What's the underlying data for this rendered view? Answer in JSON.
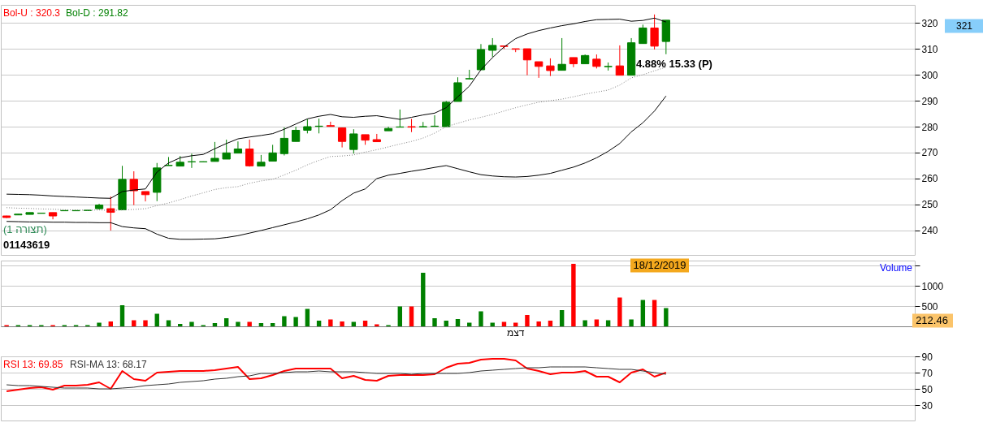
{
  "chart_data": [
    {
      "type": "candlestick",
      "categories": [
        null,
        null,
        null,
        null,
        null,
        null,
        null,
        null,
        null,
        null,
        null,
        null,
        null,
        null,
        null,
        null,
        null,
        null,
        null,
        null,
        null,
        null,
        null,
        null,
        null,
        null,
        null,
        null,
        null,
        null,
        null,
        null,
        null,
        null,
        null,
        null,
        null,
        null,
        null,
        null,
        null,
        null,
        null,
        null,
        null,
        null,
        null,
        null,
        null,
        null,
        null,
        null,
        null,
        null,
        null,
        null,
        null,
        null,
        null,
        null,
        null,
        null,
        null,
        null,
        null,
        null,
        null,
        null,
        null,
        null,
        null,
        null,
        null,
        null,
        null,
        null,
        null,
        null,
        null
      ],
      "ohlc": [
        [
          245.6,
          245.7,
          244.8,
          245.0
        ],
        [
          246.0,
          246.3,
          246.0,
          246.3
        ],
        [
          246.2,
          246.9,
          246.2,
          246.9
        ],
        [
          246.6,
          246.7,
          246.6,
          246.7
        ],
        [
          246.9,
          246.9,
          244.3,
          245.6
        ],
        [
          247.6,
          247.7,
          247.6,
          247.7
        ],
        [
          247.6,
          247.7,
          247.6,
          247.7
        ],
        [
          247.7,
          247.8,
          247.7,
          247.8
        ],
        [
          248.4,
          250.3,
          248.1,
          249.8
        ],
        [
          248.4,
          253.1,
          240.0,
          247.0
        ],
        [
          248.0,
          264.9,
          247.9,
          259.7
        ],
        [
          259.7,
          262.8,
          249.8,
          255.3
        ],
        [
          255.0,
          255.0,
          251.2,
          253.8
        ],
        [
          254.7,
          266.0,
          251.3,
          264.1
        ],
        [
          265.0,
          268.3,
          265.0,
          265.1
        ],
        [
          264.8,
          268.7,
          264.8,
          266.3
        ],
        [
          266.4,
          269.6,
          264.1,
          266.5
        ],
        [
          266.4,
          266.6,
          266.4,
          266.5
        ],
        [
          266.6,
          274.1,
          266.6,
          267.8
        ],
        [
          267.5,
          275.0,
          267.5,
          269.9
        ],
        [
          269.8,
          274.3,
          269.8,
          271.4
        ],
        [
          271.4,
          275.0,
          264.6,
          264.9
        ],
        [
          264.8,
          269.1,
          264.8,
          266.3
        ],
        [
          266.7,
          273.0,
          266.7,
          269.9
        ],
        [
          269.6,
          279.7,
          268.9,
          275.5
        ],
        [
          274.3,
          280.0,
          274.3,
          278.6
        ],
        [
          278.6,
          282.9,
          277.4,
          280.0
        ],
        [
          280.1,
          283.1,
          277.4,
          280.2
        ],
        [
          280.4,
          281.9,
          280.1,
          280.1
        ],
        [
          279.5,
          279.6,
          272.0,
          274.3
        ],
        [
          271.2,
          279.0,
          269.6,
          277.2
        ],
        [
          276.9,
          276.9,
          273.0,
          274.8
        ],
        [
          275.0,
          277.2,
          274.2,
          274.2
        ],
        [
          278.4,
          280.0,
          278.4,
          279.3
        ],
        [
          279.8,
          286.6,
          279.8,
          279.9
        ],
        [
          280.0,
          283.0,
          277.9,
          279.8
        ],
        [
          279.9,
          281.8,
          279.8,
          280.0
        ],
        [
          280.1,
          284.4,
          280.0,
          280.2
        ],
        [
          280.0,
          289.9,
          280.0,
          289.4
        ],
        [
          289.7,
          299.0,
          289.7,
          296.9
        ],
        [
          298.4,
          301.9,
          298.2,
          298.5
        ],
        [
          301.9,
          311.8,
          301.9,
          309.7
        ],
        [
          309.4,
          314.1,
          306.9,
          311.3
        ],
        [
          311.1,
          311.2,
          309.9,
          310.9
        ],
        [
          310.0,
          310.0,
          308.7,
          309.8
        ],
        [
          310.0,
          310.0,
          299.8,
          305.7
        ],
        [
          305.0,
          305.0,
          298.8,
          303.2
        ],
        [
          303.4,
          306.3,
          299.5,
          301.6
        ],
        [
          301.7,
          314.1,
          301.7,
          304.0
        ],
        [
          306.6,
          306.6,
          302.9,
          304.2
        ],
        [
          304.2,
          307.8,
          304.2,
          307.4
        ],
        [
          306.0,
          307.8,
          302.4,
          303.2
        ],
        [
          303.1,
          304.7,
          301.6,
          303.2
        ],
        [
          303.4,
          311.3,
          299.8,
          299.8
        ],
        [
          299.8,
          314.1,
          299.8,
          312.3
        ],
        [
          312.0,
          319.3,
          312.0,
          318.0
        ],
        [
          318.0,
          323.2,
          309.7,
          311.0
        ],
        [
          312.8,
          321.0,
          307.9,
          321.0
        ],
        null,
        null,
        null,
        null,
        null,
        null,
        null,
        null,
        null,
        null,
        null,
        null,
        null,
        null,
        null,
        null,
        null,
        null,
        null,
        null,
        null
      ],
      "colors": [
        "#ff0000",
        "#008000",
        "#008000",
        "#008000",
        "#ff0000",
        "#008000",
        "#008000",
        "#008000",
        "#008000",
        "#ff0000",
        "#008000",
        "#ff0000",
        "#ff0000",
        "#008000",
        "#008000",
        "#008000",
        "#008000",
        "#008000",
        "#008000",
        "#008000",
        "#008000",
        "#ff0000",
        "#008000",
        "#008000",
        "#008000",
        "#008000",
        "#008000",
        "#008000",
        "#ff0000",
        "#ff0000",
        "#008000",
        "#ff0000",
        "#ff0000",
        "#008000",
        "#008000",
        "#ff0000",
        "#008000",
        "#008000",
        "#008000",
        "#008000",
        "#008000",
        "#008000",
        "#008000",
        "#ff0000",
        "#ff0000",
        "#ff0000",
        "#ff0000",
        "#ff0000",
        "#008000",
        "#ff0000",
        "#008000",
        "#ff0000",
        "#008000",
        "#ff0000",
        "#008000",
        "#008000",
        "#ff0000",
        "#008000",
        null,
        null,
        null,
        null,
        null,
        null,
        null,
        null,
        null,
        null,
        null,
        null,
        null,
        null,
        null,
        null,
        null,
        null,
        null,
        null,
        null
      ],
      "series": [
        {
          "type": "line",
          "color": "#000000",
          "line_style": "solid",
          "values": [
            254.0,
            253.9,
            253.8,
            253.6,
            253.3,
            253.1,
            252.9,
            252.7,
            252.5,
            252.4,
            255.0,
            255.6,
            256.0,
            262.5,
            266.0,
            268.0,
            268.8,
            269.3,
            271.5,
            273.5,
            275.3,
            276.0,
            276.6,
            277.3,
            279.0,
            281.0,
            283.0,
            284.0,
            284.7,
            283.8,
            283.6,
            284.0,
            284.2,
            283.5,
            282.8,
            283.6,
            284.5,
            285.2,
            287.3,
            291.5,
            295.6,
            301.9,
            306.6,
            310.7,
            313.9,
            315.7,
            317.0,
            318.0,
            318.9,
            319.6,
            320.5,
            321.2,
            321.3,
            321.4,
            320.6,
            320.9,
            321.8,
            320.3,
            null,
            null,
            null,
            null,
            null,
            null,
            null,
            null,
            null,
            null,
            null,
            null,
            null,
            null,
            null,
            null,
            null,
            null,
            null,
            null,
            null
          ]
        },
        {
          "type": "line",
          "color": "#808080",
          "line_style": "dotted",
          "values": [
            248.8,
            248.6,
            248.5,
            248.3,
            248.2,
            248.0,
            247.9,
            247.8,
            247.9,
            247.7,
            247.9,
            248.1,
            248.4,
            249.6,
            250.6,
            251.9,
            253.3,
            254.5,
            255.8,
            256.5,
            256.9,
            258.2,
            259.1,
            259.7,
            261.4,
            263.2,
            265.3,
            267.0,
            268.5,
            268.7,
            269.1,
            270.2,
            271.1,
            272.2,
            273.3,
            274.3,
            275.6,
            277.5,
            280.0,
            281.3,
            282.6,
            283.6,
            284.7,
            286.0,
            287.3,
            288.4,
            289.4,
            290.0,
            290.6,
            291.5,
            292.5,
            293.3,
            294.1,
            296.0,
            298.8,
            300.0,
            301.5,
            302.9,
            null,
            null,
            null,
            null,
            null,
            null,
            null,
            null,
            null,
            null,
            null,
            null,
            null,
            null,
            null,
            null,
            null,
            null,
            null,
            null,
            null
          ]
        },
        {
          "type": "line",
          "color": "#000000",
          "line_style": "solid",
          "values": [
            243.5,
            243.4,
            243.3,
            243.3,
            243.2,
            243.2,
            243.1,
            243.1,
            243.0,
            243.0,
            241.5,
            241.0,
            240.7,
            238.6,
            237.0,
            236.6,
            236.6,
            236.7,
            236.8,
            237.3,
            238.0,
            239.0,
            240.0,
            241.1,
            242.2,
            243.3,
            244.5,
            246.0,
            248.0,
            251.5,
            254.4,
            256.0,
            260.0,
            261.3,
            262.0,
            262.8,
            263.5,
            264.3,
            265.0,
            263.8,
            262.6,
            261.5,
            261.0,
            260.7,
            260.6,
            260.8,
            261.3,
            262.0,
            263.2,
            264.4,
            266.0,
            268.0,
            270.5,
            273.5,
            278.0,
            281.5,
            286.0,
            291.8,
            null,
            null,
            null,
            null,
            null,
            null,
            null,
            null,
            null,
            null,
            null,
            null,
            null,
            null,
            null,
            null,
            null,
            null,
            null,
            null,
            null
          ]
        }
      ],
      "ylim": [
        230.6,
        326.9
      ],
      "yticks": [
        240,
        250,
        260,
        270,
        280,
        290,
        300,
        310,
        320
      ],
      "grid": "y",
      "tick_labels": "y",
      "annotations": [
        "Bol-U : 320.3",
        "Bol-D : 291.82",
        "4.88% 15.33 (P)",
        "(תצורה 1)",
        "01143619",
        "321"
      ]
    },
    {
      "type": "bar",
      "categories": [
        null,
        null,
        null,
        null,
        null,
        null,
        null,
        null,
        null,
        null,
        null,
        null,
        null,
        null,
        null,
        null,
        null,
        null,
        null,
        null,
        null,
        null,
        null,
        null,
        null,
        null,
        null,
        null,
        null,
        null,
        null,
        null,
        null,
        null,
        null,
        null,
        null,
        null,
        null,
        null,
        null,
        null,
        null,
        null,
        "דצמ",
        null,
        null,
        null,
        null,
        null,
        null,
        null,
        null,
        null,
        null,
        null,
        null,
        null,
        null,
        null,
        null,
        null,
        null,
        null,
        null,
        null,
        null,
        null,
        null,
        null,
        null,
        null,
        null,
        null,
        null,
        null,
        null,
        null,
        null
      ],
      "values": [
        30,
        30,
        30,
        30,
        30,
        30,
        30,
        30,
        90,
        120,
        520,
        150,
        150,
        310,
        150,
        60,
        110,
        30,
        80,
        200,
        110,
        110,
        80,
        80,
        250,
        230,
        430,
        140,
        170,
        120,
        110,
        140,
        50,
        30,
        490,
        490,
        1320,
        200,
        140,
        180,
        90,
        370,
        90,
        110,
        90,
        280,
        120,
        140,
        400,
        1540,
        150,
        170,
        150,
        710,
        170,
        650,
        650,
        450,
        null,
        null,
        null,
        null,
        null,
        null,
        null,
        null,
        null,
        null,
        null,
        null,
        null,
        null,
        null,
        null,
        null,
        null,
        null,
        null,
        null
      ],
      "colors": [
        "#ff0000",
        "#008000",
        "#008000",
        "#008000",
        "#ff0000",
        "#008000",
        "#008000",
        "#008000",
        "#008000",
        "#ff0000",
        "#008000",
        "#ff0000",
        "#ff0000",
        "#008000",
        "#008000",
        "#008000",
        "#008000",
        "#008000",
        "#008000",
        "#008000",
        "#008000",
        "#ff0000",
        "#008000",
        "#008000",
        "#008000",
        "#008000",
        "#008000",
        "#008000",
        "#ff0000",
        "#ff0000",
        "#008000",
        "#ff0000",
        "#ff0000",
        "#008000",
        "#008000",
        "#ff0000",
        "#008000",
        "#008000",
        "#008000",
        "#008000",
        "#008000",
        "#008000",
        "#008000",
        "#ff0000",
        "#ff0000",
        "#ff0000",
        "#ff0000",
        "#ff0000",
        "#008000",
        "#ff0000",
        "#008000",
        "#ff0000",
        "#008000",
        "#ff0000",
        "#008000",
        "#008000",
        "#ff0000",
        "#008000",
        null,
        null,
        null,
        null,
        null,
        null,
        null,
        null,
        null,
        null,
        null,
        null,
        null,
        null,
        null,
        null,
        null,
        null,
        null,
        null,
        null
      ],
      "ylim": [
        0,
        1620
      ],
      "yticks": [
        500,
        1000,
        {
          "value": 1500,
          "label": null
        }
      ],
      "grid": "y",
      "annotations": [
        "Volume",
        "18/12/2019",
        "212.46"
      ]
    },
    {
      "type": "line",
      "categories": [
        null,
        null,
        null,
        null,
        null,
        null,
        null,
        null,
        null,
        null,
        null,
        null,
        null,
        null,
        null,
        null,
        null,
        null,
        null,
        null,
        null,
        null,
        null,
        null,
        null,
        null,
        null,
        null,
        null,
        null,
        null,
        null,
        null,
        null,
        null,
        null,
        null,
        null,
        null,
        null,
        null,
        null,
        null,
        null,
        null,
        null,
        null,
        null,
        null,
        null,
        null,
        null,
        null,
        null,
        null,
        null,
        null,
        null,
        null,
        null,
        null,
        null,
        null,
        null,
        null,
        null,
        null,
        null,
        null,
        null,
        null,
        null,
        null,
        null,
        null,
        null,
        null,
        null,
        null
      ],
      "series": [
        {
          "name": "RSI 13: 69.85",
          "color": "#ff0000",
          "values": [
            47,
            49,
            51,
            52,
            49,
            54,
            54,
            55,
            58,
            50,
            72,
            62,
            60,
            70,
            71,
            72,
            72,
            72,
            73,
            75,
            77,
            62,
            63,
            67,
            72,
            75,
            75,
            75,
            75,
            63,
            66,
            61,
            60,
            66,
            67,
            67,
            67,
            68,
            76,
            81,
            82,
            86,
            87,
            87,
            85,
            75,
            72,
            68,
            70,
            70,
            72,
            65,
            65,
            58,
            70,
            74,
            65,
            70,
            null,
            null,
            null,
            null,
            null,
            null,
            null,
            null,
            null,
            null,
            null,
            null,
            null,
            null,
            null,
            null,
            null,
            null,
            null,
            null,
            null
          ]
        },
        {
          "name": "RSI-MA 13: 68.17",
          "color": "#333333",
          "values": [
            55,
            54,
            54,
            53,
            52,
            51,
            51,
            51,
            50,
            50,
            51,
            52,
            54,
            55,
            56,
            58,
            59,
            60,
            62,
            63,
            65,
            66,
            69,
            69,
            70,
            71,
            71,
            72,
            71,
            71,
            71,
            70,
            69,
            69,
            69,
            68,
            69,
            69,
            69,
            69,
            70,
            72,
            73,
            74,
            75,
            76,
            76,
            77,
            77,
            77,
            77,
            76,
            75,
            74,
            74,
            72,
            70,
            68,
            null,
            null,
            null,
            null,
            null,
            null,
            null,
            null,
            null,
            null,
            null,
            null,
            null,
            null,
            null,
            null,
            null,
            null,
            null,
            null,
            null
          ]
        }
      ],
      "ylim": [
        11,
        90
      ],
      "yticks": [
        30,
        50,
        70,
        90
      ],
      "grid": "y",
      "tick_labels": "y",
      "legend": "top left"
    }
  ]
}
